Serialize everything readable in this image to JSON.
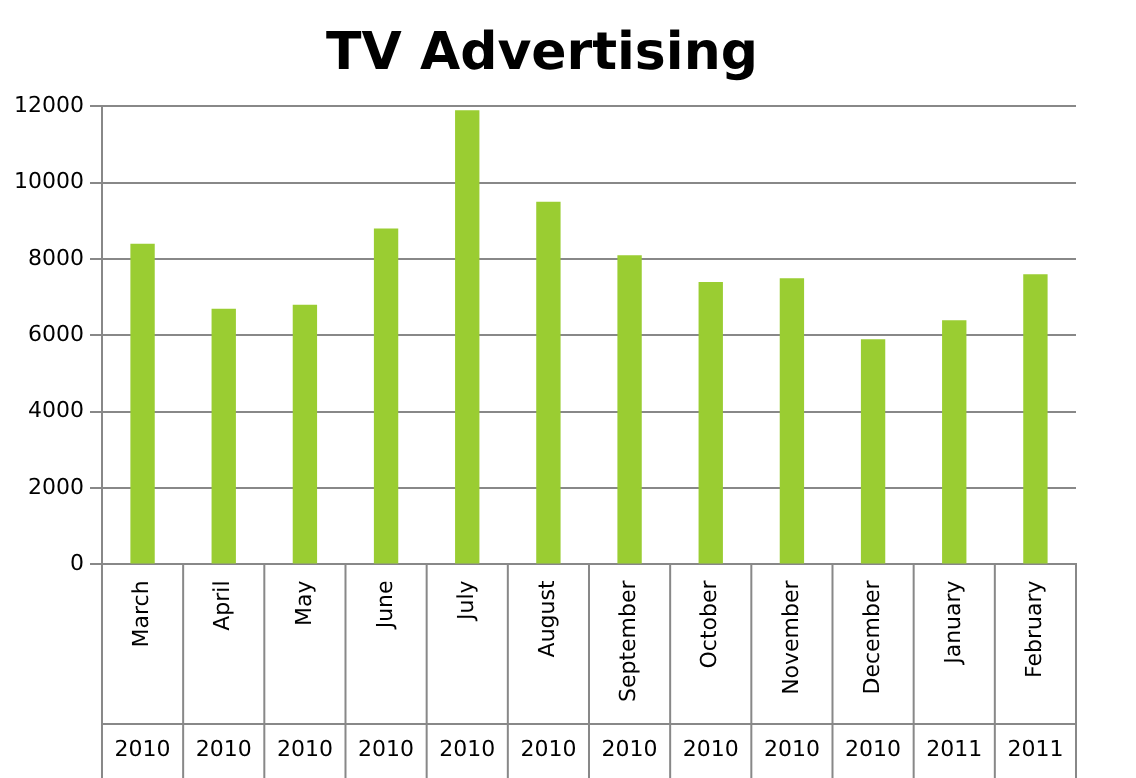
{
  "chart_data": {
    "type": "bar",
    "title": "TV Advertising",
    "categories": [
      "March 2010",
      "April 2010",
      "May 2010",
      "June 2010",
      "July 2010",
      "August 2010",
      "September 2010",
      "October 2010",
      "November 2010",
      "December 2010",
      "January 2011",
      "February 2011"
    ],
    "values": [
      8400,
      6700,
      6800,
      8800,
      11900,
      9500,
      8100,
      7400,
      7500,
      5900,
      6400,
      7600
    ],
    "color": "#9acd32",
    "ylim": [
      0,
      12000
    ],
    "yticks": [
      0,
      2000,
      4000,
      6000,
      8000,
      10000,
      12000
    ],
    "grid": "y",
    "legend": false
  }
}
